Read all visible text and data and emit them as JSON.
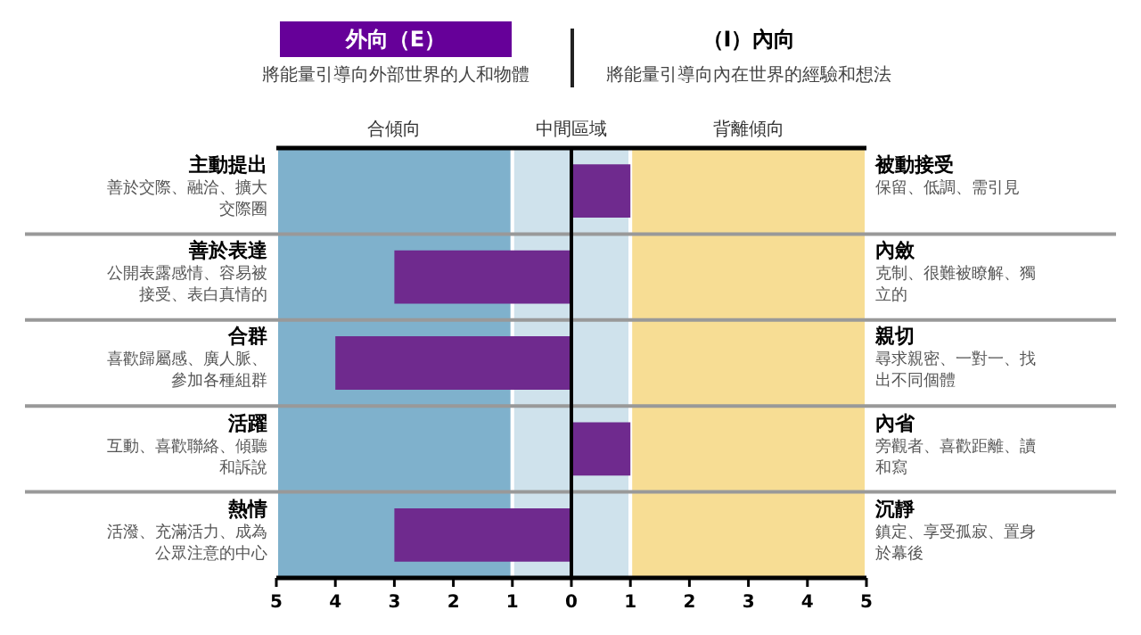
{
  "chart_data": {
    "type": "bar",
    "orientation": "horizontal",
    "title": "外向（E）",
    "subtitle": "將能量引導向外部世界的人和物體",
    "annotations": [
      "（I）內向",
      "將能量引導向內在世界的經驗和想法",
      "善於交際、融洽、擴大交際圈",
      "公開表露感情、容易被接受、表白真情的",
      "喜歡歸屬感、廣人脈、參加各種組群",
      "互動、喜歡聯絡、傾聽和訴說",
      "活潑、充滿活力、成為公眾注意的中心",
      "保留、低調、需引見",
      "克制、很難被瞭解、獨立的",
      "尋求親密、一對一、找出不同個體",
      "旁觀者、喜歡距離、讀和寫",
      "鎮定、享受孤寂、置身於幕後"
    ],
    "categories": [
      "主動提出",
      "善於表達",
      "合群",
      "活躍",
      "熱情"
    ],
    "y2_categories": [
      "被動接受",
      "內斂",
      "親切",
      "內省",
      "沉靜"
    ],
    "values": [
      1,
      -3,
      -4,
      1,
      -3
    ],
    "color": "#6f2a8e",
    "xlim": [
      -5,
      5
    ],
    "xticks": [
      {
        "value": -5,
        "label": "5"
      },
      {
        "value": -4,
        "label": "4"
      },
      {
        "value": -3,
        "label": "3"
      },
      {
        "value": -2,
        "label": "2"
      },
      {
        "value": -1,
        "label": "1"
      },
      0,
      1,
      2,
      3,
      4,
      5
    ],
    "bands": [
      {
        "axis": "x",
        "from": -5,
        "to": -1,
        "label": "合傾向",
        "color": "#7fb1cc"
      },
      {
        "axis": "x",
        "from": -1,
        "to": 1,
        "label": "中間區域",
        "color": "#cfe2ec"
      },
      {
        "axis": "x",
        "from": 1,
        "to": 5,
        "label": "背離傾向",
        "color": "#f7dd94"
      }
    ],
    "ref_lines": [
      {
        "axis": "x",
        "value": 0,
        "color": "#000000"
      }
    ],
    "legend": false
  }
}
